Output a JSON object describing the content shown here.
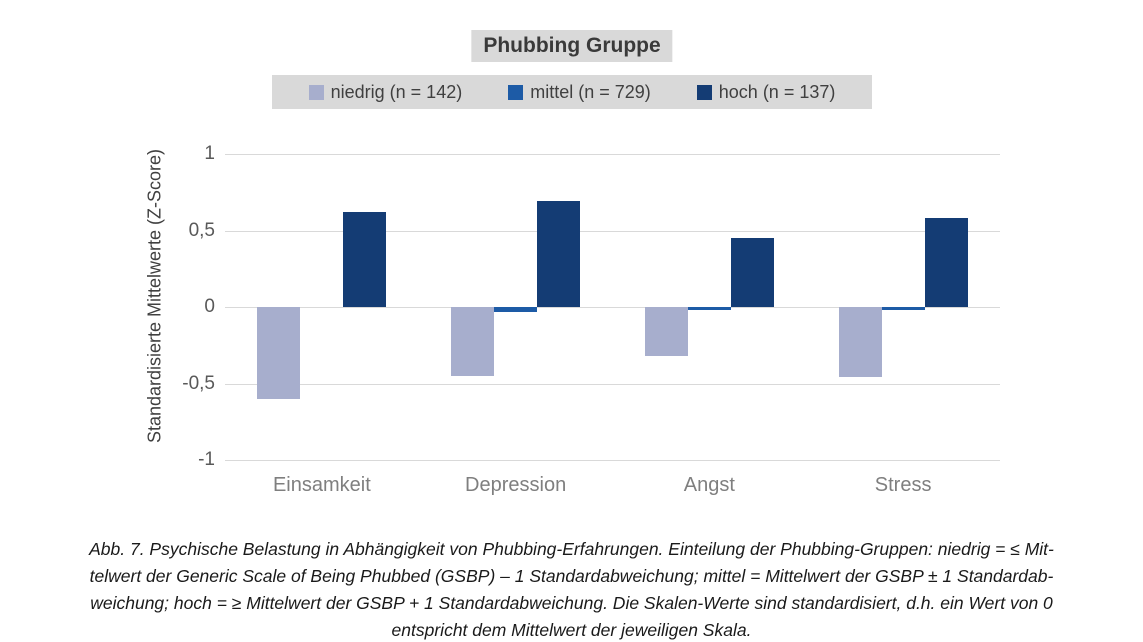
{
  "title": "Phubbing Gruppe",
  "legend": {
    "items": [
      {
        "label": "niedrig (n = 142)",
        "color": "#a7aecd"
      },
      {
        "label": "mittel (n = 729)",
        "color": "#1d5ba6"
      },
      {
        "label": "hoch (n = 137)",
        "color": "#143c74"
      }
    ]
  },
  "chart_data": {
    "type": "bar",
    "title": "Phubbing Gruppe",
    "xlabel": "",
    "ylabel": "Standardisierte Mittelwerte (Z-Score)",
    "ylim": [
      -1,
      1
    ],
    "grid": true,
    "legend_position": "top",
    "categories": [
      "Einsamkeit",
      "Depression",
      "Angst",
      "Stress"
    ],
    "yticks": [
      {
        "value": 1,
        "label": "1"
      },
      {
        "value": 0.5,
        "label": "0,5"
      },
      {
        "value": 0,
        "label": "0"
      },
      {
        "value": -0.5,
        "label": "-0,5"
      },
      {
        "value": -1,
        "label": "-1"
      }
    ],
    "series": [
      {
        "name": "niedrig (n = 142)",
        "color": "#a7aecd",
        "values": [
          -0.6,
          -0.45,
          -0.32,
          -0.46
        ]
      },
      {
        "name": "mittel (n = 729)",
        "color": "#1d5ba6",
        "values": [
          0.0,
          -0.03,
          -0.02,
          -0.02
        ]
      },
      {
        "name": "hoch (n = 137)",
        "color": "#143c74",
        "values": [
          0.62,
          0.69,
          0.45,
          0.58
        ]
      }
    ]
  },
  "caption": {
    "lines": [
      "Abb. 7. Psychische Belastung in Abhängigkeit von Phubbing-Erfahrungen. Einteilung der Phubbing-Gruppen: niedrig =  ≤ Mit-",
      "telwert der Generic Scale of Being Phubbed (GSBP) – 1 Standardabweichung; mittel = Mittelwert der GSBP  ± 1 Standardab-",
      "weichung; hoch = ≥ Mittelwert der GSBP + 1 Standardabweichung. Die Skalen-Werte sind standardisiert, d.h. ein Wert von 0",
      "entspricht dem Mittelwert der jeweiligen Skala."
    ]
  },
  "colors": {
    "grid": "#d9d9d9",
    "title_background": "#d9d9d9",
    "legend_background": "#d9d9d9",
    "axis_tick_text": "#595959",
    "category_text": "#7f7f7f",
    "caption_text": "#1a1a1a"
  }
}
